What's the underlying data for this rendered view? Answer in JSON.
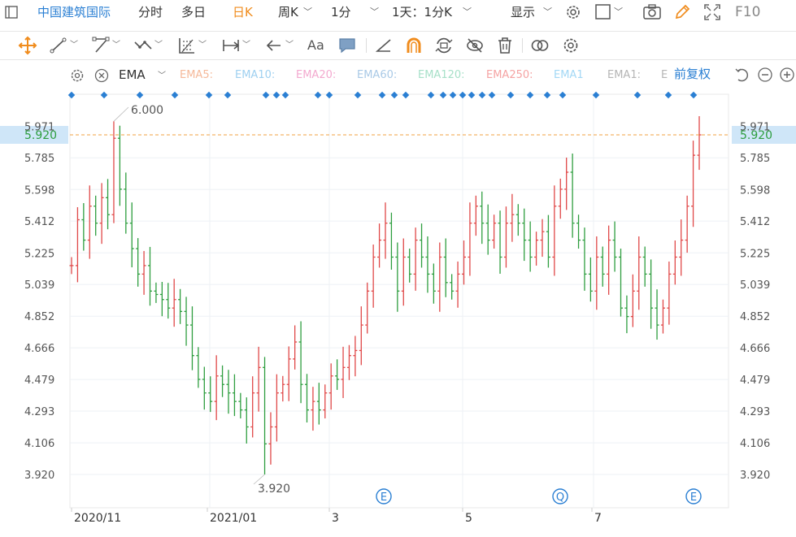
{
  "toolbar": {
    "symbol": "中国建筑国际",
    "periods": [
      "分时",
      "多日",
      "日K",
      "周K"
    ],
    "interval": "1分",
    "range": "1天：1分K",
    "display": "显示",
    "f10": "F10"
  },
  "drawing_tools": {
    "text_tool": "Aa"
  },
  "indicator_bar": {
    "indicator": "EMA",
    "ema_labels": [
      "EMA5:",
      "EMA10:",
      "EMA20:",
      "EMA60:",
      "EMA120:",
      "EMA250:",
      "EMA1",
      "EMA1:",
      "E"
    ],
    "ema_colors": [
      "#f5b99a",
      "#9fd0f0",
      "#f3a9cf",
      "#a9c9e6",
      "#a7e0c8",
      "#f5a3a3",
      "#a3d8f5",
      "#b5b5b5",
      "#b5b5b5"
    ],
    "adjust": "前复权"
  },
  "chart": {
    "current_price": "5.920",
    "high_label": "6.000",
    "low_label": "3.920",
    "top_tick_partial": "5.971",
    "event_markers": [
      "E",
      "Q",
      "E"
    ],
    "up_color": "#e04848",
    "down_color": "#2e9e3f"
  },
  "chart_data": {
    "type": "ohlc",
    "y_ticks": [
      5.785,
      5.598,
      5.412,
      5.225,
      5.039,
      4.852,
      4.666,
      4.479,
      4.293,
      4.106,
      3.92
    ],
    "x_ticks": [
      "2020/11",
      "2021/01",
      "3",
      "5",
      "7"
    ],
    "ylim": [
      3.85,
      6.05
    ],
    "high": {
      "value": 6.0,
      "label": "6.000"
    },
    "low": {
      "value": 3.92,
      "label": "3.920"
    },
    "last": 5.92,
    "closes": [
      5.15,
      5.42,
      5.3,
      5.5,
      5.4,
      5.55,
      5.45,
      5.9,
      5.6,
      5.4,
      5.25,
      5.1,
      5.15,
      5.0,
      4.98,
      4.95,
      4.9,
      4.95,
      4.88,
      4.8,
      4.62,
      4.48,
      4.4,
      4.35,
      4.5,
      4.45,
      4.4,
      4.35,
      4.3,
      4.2,
      4.4,
      4.55,
      4.1,
      4.2,
      4.4,
      4.45,
      4.6,
      4.7,
      4.45,
      4.3,
      4.35,
      4.3,
      4.4,
      4.5,
      4.48,
      4.55,
      4.62,
      4.65,
      4.8,
      5.0,
      5.2,
      5.3,
      5.4,
      5.2,
      5.0,
      5.2,
      5.1,
      5.3,
      5.2,
      5.1,
      5.0,
      5.2,
      5.05,
      5.0,
      5.1,
      5.2,
      5.4,
      5.5,
      5.4,
      5.3,
      5.4,
      5.2,
      5.4,
      5.45,
      5.4,
      5.3,
      5.2,
      5.3,
      5.35,
      5.2,
      5.5,
      5.6,
      5.7,
      5.4,
      5.3,
      5.1,
      5.0,
      5.2,
      5.1,
      5.3,
      5.2,
      4.9,
      4.85,
      5.0,
      5.2,
      5.1,
      4.9,
      4.8,
      4.9,
      5.1,
      5.2,
      5.3,
      5.5,
      5.8,
      5.92
    ],
    "legend": "none",
    "grid": true
  }
}
